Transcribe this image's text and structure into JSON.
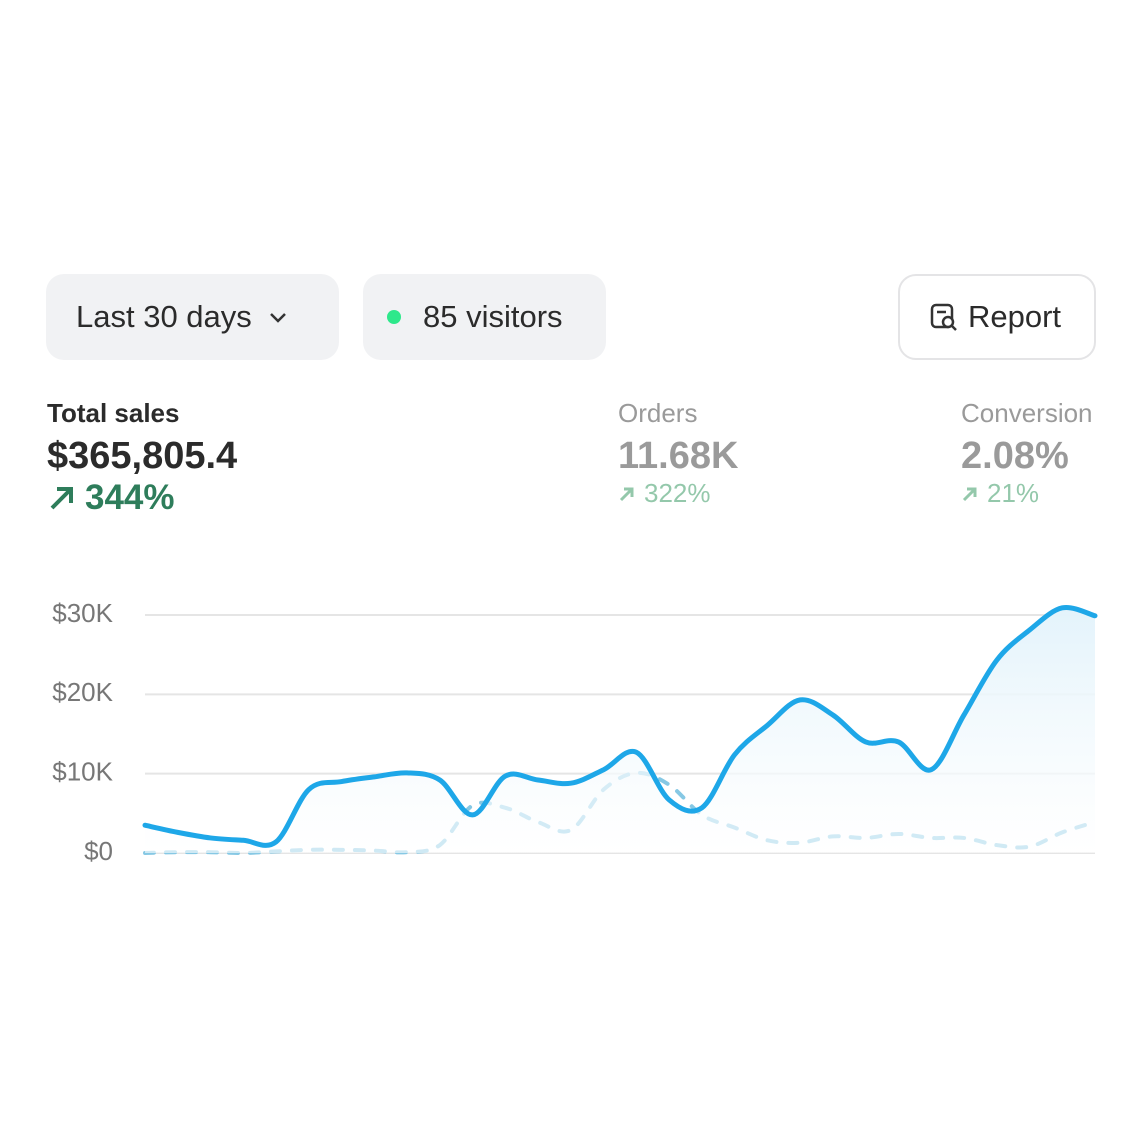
{
  "toolbar": {
    "range": "Last 30 days",
    "visitors": "85 visitors",
    "report": "Report"
  },
  "metrics": [
    {
      "label": "Total sales",
      "value": "$365,805.4",
      "change": "344%"
    },
    {
      "label": "Orders",
      "value": "11.68K",
      "change": "322%"
    },
    {
      "label": "Conversion",
      "value": "2.08%",
      "change": "21%"
    }
  ],
  "chart_data": {
    "type": "line",
    "ylim": [
      0,
      30000
    ],
    "yticks": [
      {
        "value": 0,
        "label": "$0"
      },
      {
        "value": 10000,
        "label": "$10K"
      },
      {
        "value": 20000,
        "label": "$20K"
      },
      {
        "value": 30000,
        "label": "$30K"
      }
    ],
    "grid": true,
    "series": [
      {
        "color": "#1ea7e8",
        "style": "solid",
        "fill": true,
        "values": [
          3500,
          2600,
          1900,
          1600,
          1400,
          8000,
          9000,
          9600,
          10100,
          9200,
          4800,
          9700,
          9200,
          8800,
          10500,
          12700,
          6700,
          5700,
          12400,
          16100,
          19300,
          17400,
          14000,
          14000,
          10500,
          17400,
          24300,
          28100,
          30900,
          29900
        ]
      },
      {
        "color": "#86c8e4",
        "style": "dashed",
        "fill": false,
        "values": [
          0,
          100,
          100,
          0,
          200,
          400,
          400,
          300,
          100,
          1000,
          6000,
          5700,
          3900,
          2900,
          8000,
          10100,
          8600,
          4800,
          3200,
          1600,
          1300,
          2100,
          1900,
          2400,
          1900,
          1900,
          1000,
          800,
          2600,
          3900
        ]
      }
    ]
  }
}
